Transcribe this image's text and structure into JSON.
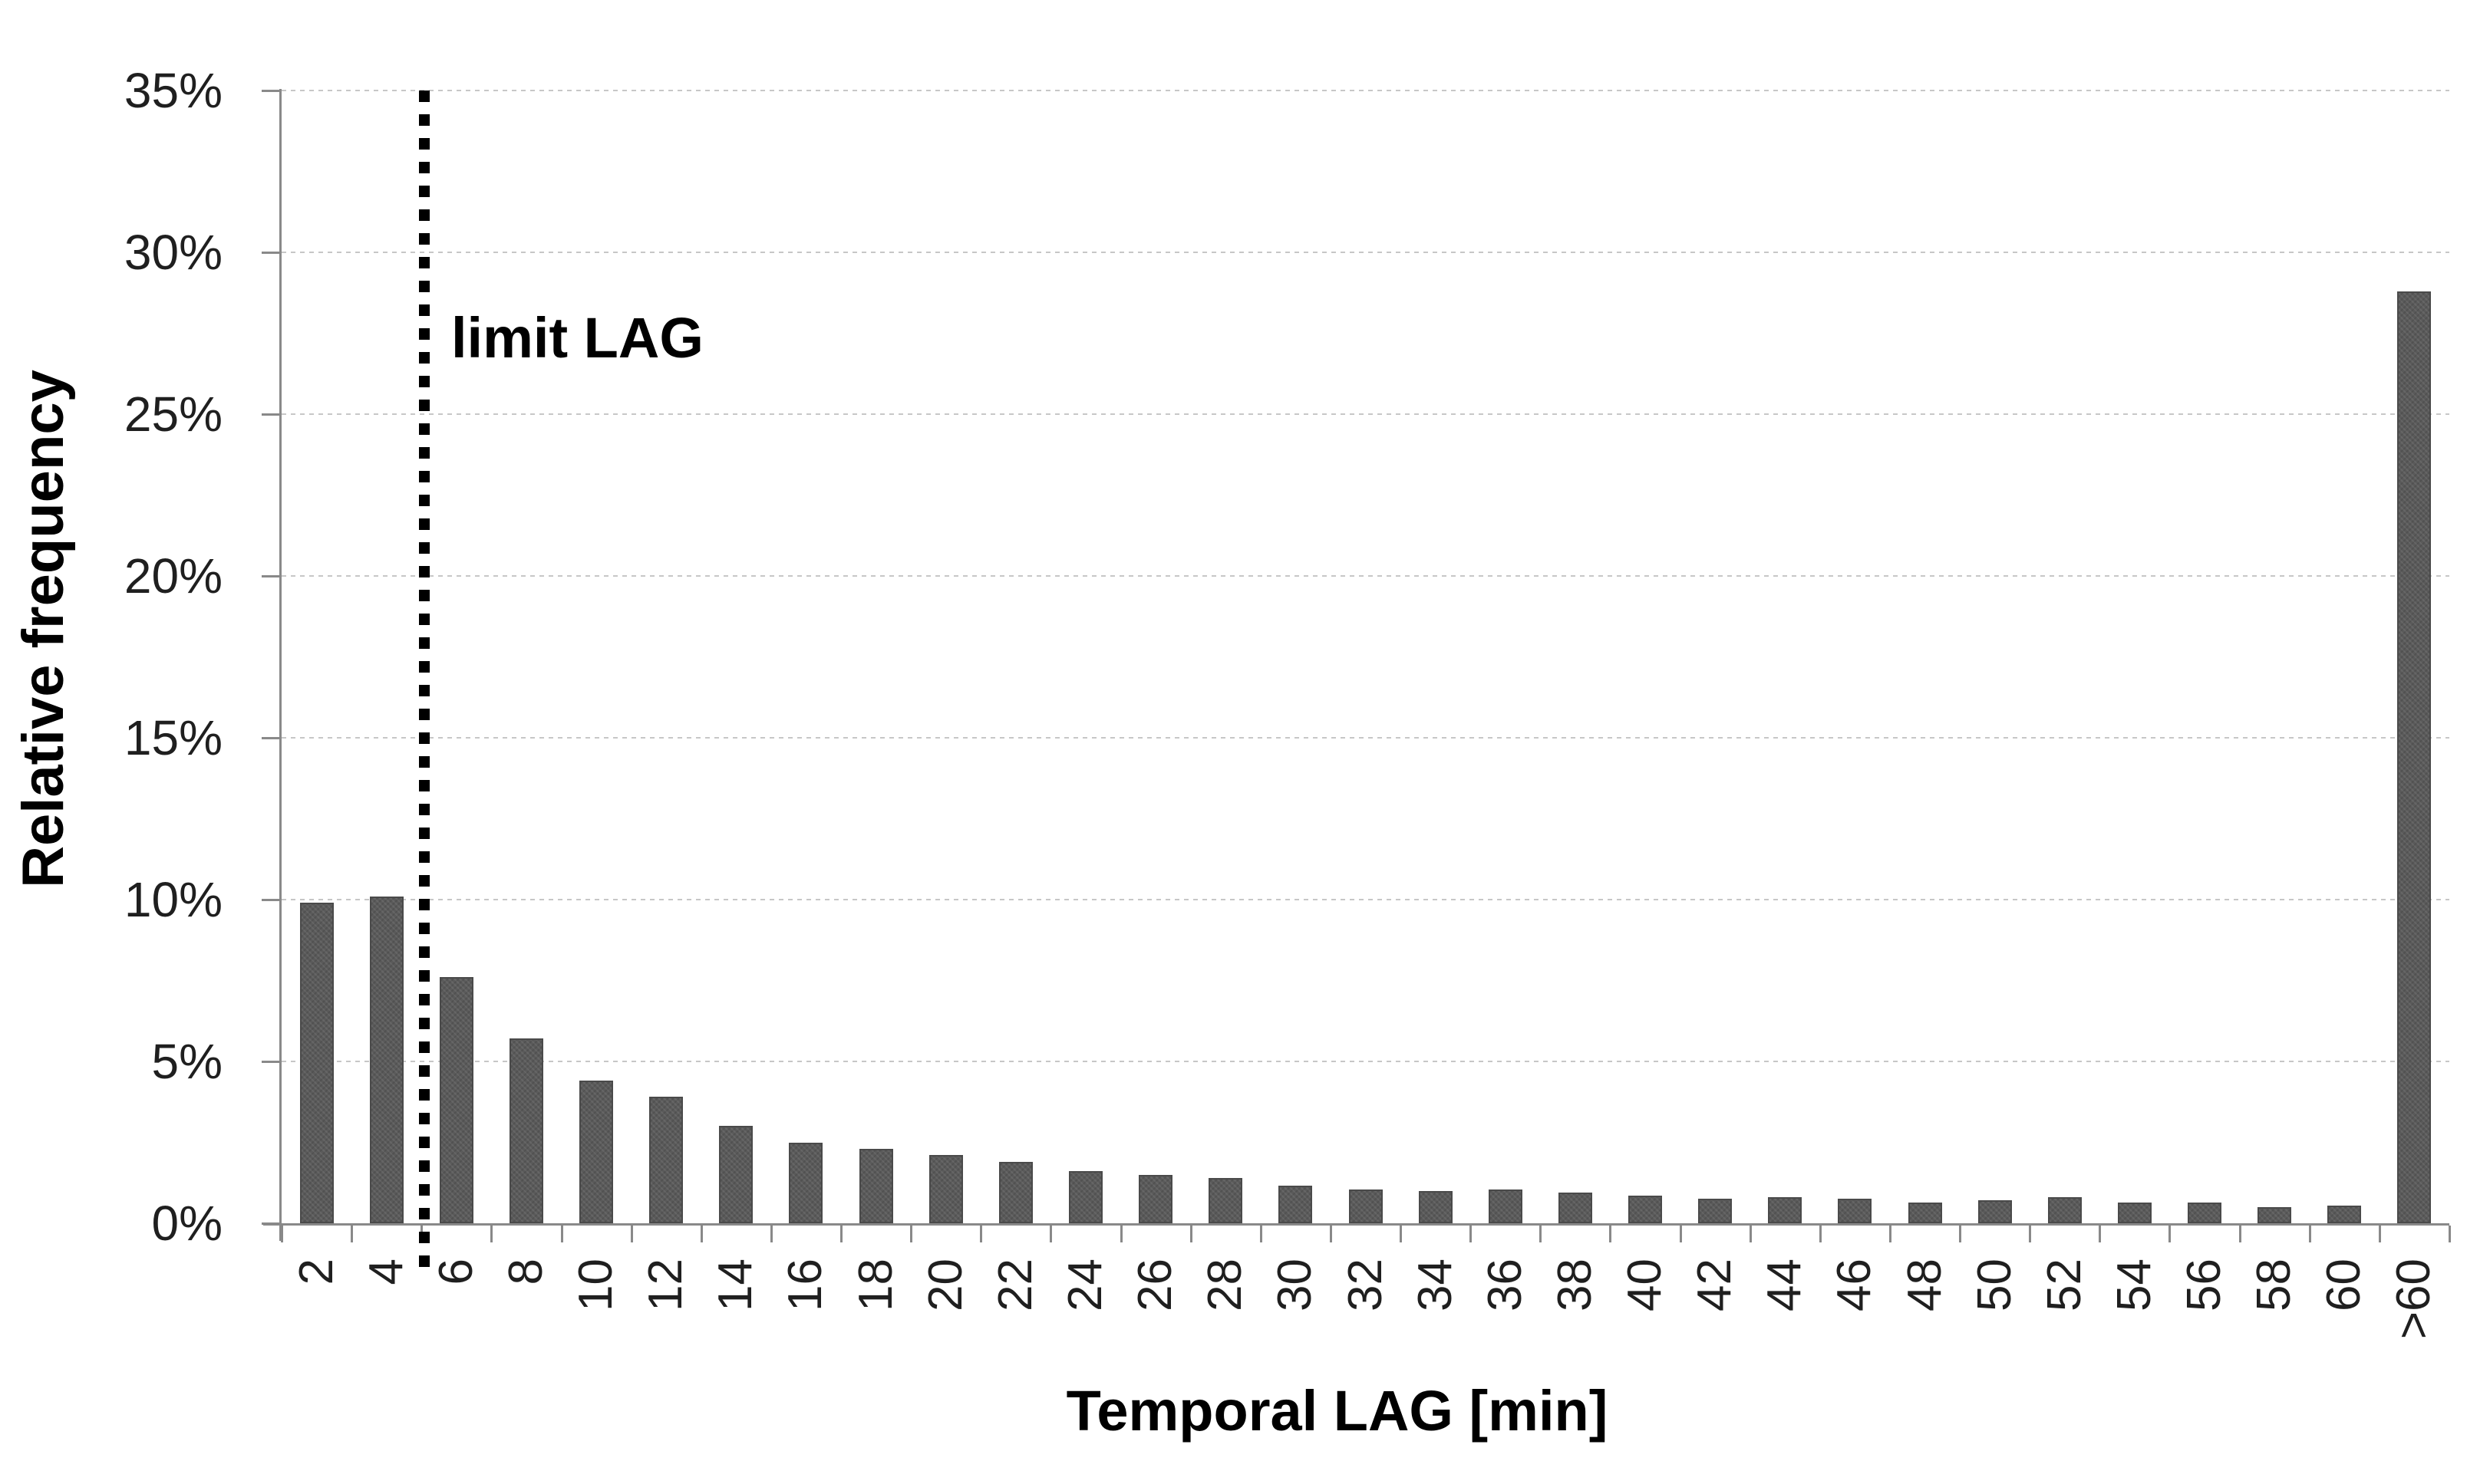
{
  "chart_data": {
    "type": "bar",
    "title": "",
    "xlabel": "Temporal LAG [min]",
    "ylabel": "Relative frequency",
    "categories": [
      "2",
      "4",
      "6",
      "8",
      "10",
      "12",
      "14",
      "16",
      "18",
      "20",
      "22",
      "24",
      "26",
      "28",
      "30",
      "32",
      "34",
      "36",
      "38",
      "40",
      "42",
      "44",
      "46",
      "48",
      "50",
      "52",
      "54",
      "56",
      "58",
      "60",
      ">60"
    ],
    "values_percent": [
      9.9,
      10.1,
      7.6,
      5.7,
      4.4,
      3.9,
      3.0,
      2.5,
      2.3,
      2.1,
      1.9,
      1.6,
      1.5,
      1.4,
      1.15,
      1.05,
      1.0,
      1.05,
      0.95,
      0.85,
      0.75,
      0.8,
      0.75,
      0.65,
      0.7,
      0.8,
      0.65,
      0.65,
      0.5,
      0.55,
      28.8
    ],
    "ylim": [
      0,
      35
    ],
    "ytick_step_percent": 5,
    "ytick_labels": [
      "0%",
      "5%",
      "10%",
      "15%",
      "20%",
      "25%",
      "30%",
      "35%"
    ],
    "grid": "horizontal-dotted",
    "legend": "none",
    "annotation": {
      "label": "limit LAG",
      "line_style": "vertical-dotted",
      "position_between_categories": [
        "4",
        "6"
      ],
      "x_value_min": 5
    },
    "colors": {
      "bar": "#5a5a5a",
      "bar_border": "#4a4a4a",
      "axis": "#898989",
      "gridline": "#c7c7c7",
      "tick_text": "#1f1f1f",
      "title_text": "#000000",
      "annotation_line": "#000000",
      "background": "#ffffff"
    }
  }
}
